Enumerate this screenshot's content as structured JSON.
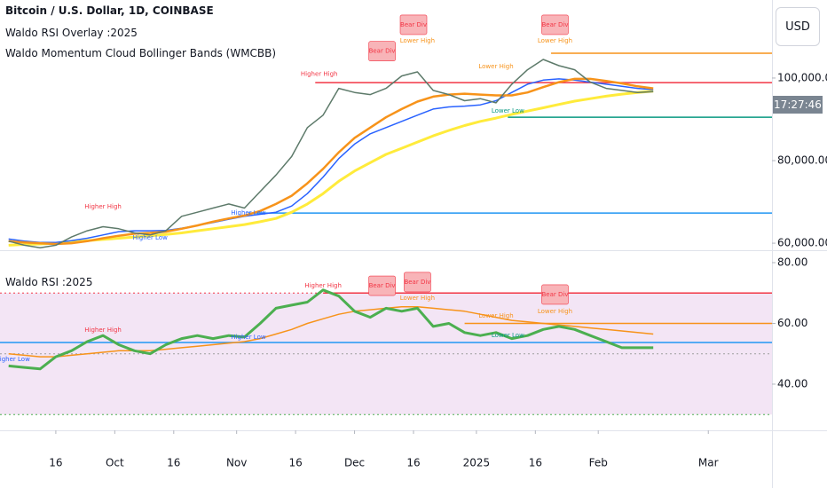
{
  "header": {
    "title": "Bitcoin / U.S. Dollar, 1D, COINBASE",
    "indicators": [
      "Waldo RSI Overlay :2025",
      "Waldo Momentum Cloud Bollinger Bands (WMCBB)"
    ]
  },
  "price_axis": {
    "currency": "USD",
    "countdown": "17:27:46"
  },
  "chart_data": [
    {
      "type": "line",
      "x": [
        -12,
        -8,
        -4,
        0,
        4,
        8,
        12,
        16,
        20,
        24,
        28,
        32,
        36,
        40,
        44,
        48,
        52,
        56,
        60,
        64,
        68,
        72,
        76,
        80,
        84,
        88,
        92,
        96,
        100,
        104,
        108,
        112,
        116,
        120,
        124,
        128,
        132,
        136,
        140,
        144,
        148,
        152
      ],
      "xlim": [
        -14.2,
        182.2
      ],
      "ylim": [
        58300,
        118900
      ],
      "yticks": [
        {
          "value": 60000,
          "label": "60,000.00"
        },
        {
          "value": 80000,
          "label": "80,000.00"
        },
        {
          "value": 100000,
          "label": "100,000.00"
        }
      ],
      "series": [
        {
          "color": "#ffeb3b",
          "width": 3,
          "values": [
            59500,
            59700,
            59800,
            60000,
            60300,
            60600,
            60900,
            61200,
            61500,
            61800,
            62100,
            62500,
            63000,
            63500,
            64000,
            64500,
            65200,
            66000,
            67500,
            69500,
            72000,
            75000,
            77500,
            79500,
            81500,
            83000,
            84500,
            86000,
            87300,
            88500,
            89500,
            90300,
            91200,
            92000,
            92800,
            93600,
            94400,
            95000,
            95600,
            96100,
            96500,
            96800
          ]
        },
        {
          "color": "#2962ff",
          "width": 1.5,
          "values": [
            61000,
            60500,
            60200,
            60200,
            60600,
            61200,
            62000,
            62800,
            63000,
            63000,
            63100,
            63600,
            64300,
            65000,
            65800,
            66500,
            67000,
            67500,
            69000,
            72000,
            76000,
            80500,
            84000,
            86500,
            88000,
            89500,
            91000,
            92500,
            93000,
            93200,
            93500,
            94500,
            96500,
            98500,
            99500,
            99800,
            99500,
            99000,
            98500,
            98000,
            97500,
            97200
          ]
        },
        {
          "color": "#f7931a",
          "width": 2.5,
          "values": [
            60500,
            60200,
            60000,
            59800,
            60000,
            60500,
            61200,
            61800,
            62300,
            62500,
            62800,
            63500,
            64300,
            65200,
            66000,
            66700,
            67800,
            69500,
            71500,
            74500,
            78000,
            82000,
            85500,
            88000,
            90500,
            92500,
            94300,
            95500,
            96000,
            96200,
            96000,
            95800,
            95800,
            96500,
            97800,
            99000,
            99800,
            99800,
            99300,
            98700,
            98000,
            97500
          ]
        },
        {
          "color": "#5d7a6a",
          "width": 1.5,
          "values": [
            60500,
            59500,
            58900,
            59500,
            61500,
            63000,
            64000,
            63500,
            62500,
            62000,
            63000,
            66500,
            67500,
            68500,
            69500,
            68500,
            72500,
            76500,
            81000,
            88000,
            91000,
            97500,
            96500,
            96000,
            97500,
            100500,
            101500,
            97000,
            96000,
            94500,
            95000,
            94000,
            98500,
            102000,
            104500,
            103000,
            102000,
            99000,
            97500,
            97000,
            96500,
            96700
          ]
        }
      ],
      "hlines": [
        {
          "value": 106000,
          "from": 126,
          "color": "#f7931a"
        },
        {
          "value": 98900,
          "from": 66,
          "color": "#f23645"
        },
        {
          "value": 90500,
          "from": 115,
          "color": "#089981"
        },
        {
          "value": 67300,
          "from": 49,
          "color": "#2196f3"
        }
      ],
      "annotations": [
        {
          "text": "Higher High",
          "x": 67,
          "y": 101000,
          "color": "#f23645"
        },
        {
          "text": "Bear Div",
          "x": 83,
          "y": 106500,
          "color": "#f23645",
          "style": "box"
        },
        {
          "text": "Bear Div",
          "x": 91,
          "y": 112900,
          "color": "#f23645",
          "style": "box"
        },
        {
          "text": "Lower High",
          "x": 92,
          "y": 109000,
          "color": "#f7931a"
        },
        {
          "text": "Lower High",
          "x": 112,
          "y": 102800,
          "color": "#f7931a"
        },
        {
          "text": "Lower Low",
          "x": 115,
          "y": 92000,
          "color": "#089981"
        },
        {
          "text": "Bear Div",
          "x": 127,
          "y": 112900,
          "color": "#f23645",
          "style": "box"
        },
        {
          "text": "Lower High",
          "x": 127,
          "y": 109000,
          "color": "#f7931a"
        },
        {
          "text": "Higher High",
          "x": 12,
          "y": 68800,
          "color": "#f23645"
        },
        {
          "text": "Higher Low",
          "x": 24,
          "y": 61300,
          "color": "#2962ff"
        },
        {
          "text": "Higher Low",
          "x": 49,
          "y": 67300,
          "color": "#2962ff"
        }
      ]
    },
    {
      "type": "line",
      "title": "Waldo RSI :2025",
      "x": [
        -12,
        -8,
        -4,
        0,
        4,
        8,
        12,
        16,
        20,
        24,
        28,
        32,
        36,
        40,
        44,
        48,
        52,
        56,
        60,
        64,
        68,
        72,
        76,
        80,
        84,
        88,
        92,
        96,
        100,
        104,
        108,
        112,
        116,
        120,
        124,
        128,
        132,
        136,
        140,
        144,
        148,
        152
      ],
      "xlim": [
        -14.2,
        182.2
      ],
      "ylim": [
        24.8,
        83.8
      ],
      "yticks": [
        {
          "value": 40,
          "label": "40.00"
        },
        {
          "value": 60,
          "label": "60.00"
        },
        {
          "value": 80,
          "label": "80.00"
        }
      ],
      "xticks": [
        {
          "value": 0,
          "label": "16"
        },
        {
          "value": 15,
          "label": "Oct"
        },
        {
          "value": 30,
          "label": "16"
        },
        {
          "value": 46,
          "label": "Nov"
        },
        {
          "value": 61,
          "label": "16"
        },
        {
          "value": 76,
          "label": "Dec"
        },
        {
          "value": 91,
          "label": "16"
        },
        {
          "value": 107,
          "label": "2025"
        },
        {
          "value": 122,
          "label": "16"
        },
        {
          "value": 138,
          "label": "Feb"
        },
        {
          "value": 166,
          "label": "Mar"
        }
      ],
      "band": [
        30,
        70
      ],
      "band_color": "#f3e5f5",
      "series": [
        {
          "color": "#f7931a",
          "width": 1.5,
          "values": [
            50,
            49.5,
            49,
            49,
            49.5,
            50,
            50.5,
            51,
            51,
            51,
            51.5,
            52,
            52.5,
            53,
            53.5,
            54,
            55,
            56.5,
            58,
            60,
            61.5,
            63,
            64,
            64.5,
            65,
            65.5,
            65.5,
            65,
            64.5,
            64,
            63,
            62,
            61,
            60.5,
            60,
            59.5,
            59,
            58.5,
            58,
            57.5,
            57,
            56.5
          ]
        },
        {
          "color": "#4caf50",
          "width": 3,
          "values": [
            46,
            45.5,
            45,
            49,
            51,
            54,
            56,
            53,
            51,
            50,
            53,
            55,
            56,
            55,
            56,
            55.5,
            60,
            65,
            66,
            67,
            71,
            69,
            64,
            62,
            65,
            64,
            65,
            59,
            60,
            57,
            56,
            57,
            55,
            56,
            58,
            59,
            58,
            56,
            54,
            52,
            52,
            52
          ]
        }
      ],
      "hlines": [
        {
          "value": 70,
          "from": -14.2,
          "color": "#f23645",
          "dash": true
        },
        {
          "value": 50,
          "from": -14.2,
          "color": "#9e9e9e",
          "dash": true
        },
        {
          "value": 30,
          "from": -14.2,
          "color": "#4caf50",
          "dash": true
        },
        {
          "value": 70,
          "from": 68,
          "color": "#f23645"
        },
        {
          "value": 60,
          "from": 104,
          "color": "#f7931a"
        },
        {
          "value": 53.7,
          "from": -14.2,
          "color": "#2196f3"
        }
      ],
      "annotations": [
        {
          "text": "Higher High",
          "x": 68,
          "y": 72.4,
          "color": "#f23645"
        },
        {
          "text": "Bear Div",
          "x": 83,
          "y": 72.4,
          "color": "#f23645",
          "style": "box"
        },
        {
          "text": "Bear Div",
          "x": 92,
          "y": 73.6,
          "color": "#f23645",
          "style": "box"
        },
        {
          "text": "Lower High",
          "x": 92,
          "y": 68.3,
          "color": "#f7931a"
        },
        {
          "text": "Higher High",
          "x": 12,
          "y": 57.8,
          "color": "#f23645"
        },
        {
          "text": "Higher Low",
          "x": 49,
          "y": 55.5,
          "color": "#2962ff"
        },
        {
          "text": "Higher Low",
          "x": -11,
          "y": 48.2,
          "color": "#2962ff"
        },
        {
          "text": "Lower High",
          "x": 112,
          "y": 62.5,
          "color": "#f7931a"
        },
        {
          "text": "Lower Low",
          "x": 115,
          "y": 56,
          "color": "#089981"
        },
        {
          "text": "Bear Div",
          "x": 127,
          "y": 69.5,
          "color": "#f23645",
          "style": "box"
        },
        {
          "text": "Lower High",
          "x": 127,
          "y": 64,
          "color": "#f7931a"
        }
      ]
    }
  ]
}
